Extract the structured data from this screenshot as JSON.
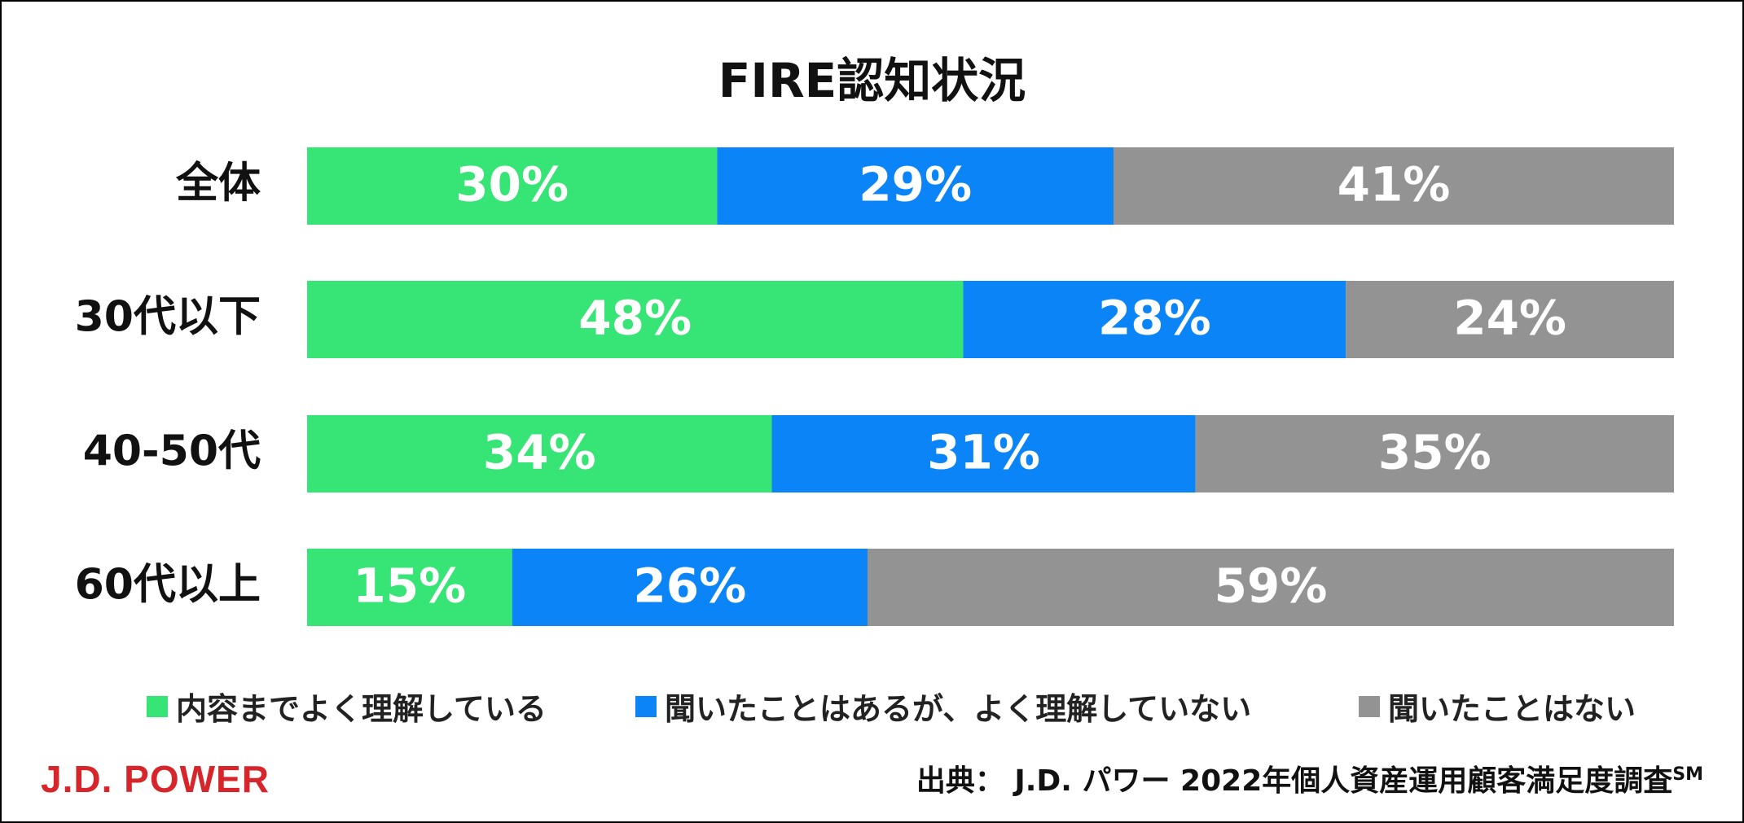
{
  "chart_data": {
    "type": "bar",
    "orientation": "horizontal",
    "stacked": true,
    "title": "FIRE認知状況",
    "categories": [
      "全体",
      "30代以下",
      "40-50代",
      "60代以上"
    ],
    "series": [
      {
        "name": "内容までよく理解している",
        "values": [
          30,
          48,
          34,
          15
        ],
        "color": "#37e476"
      },
      {
        "name": "聞いたことはあるが、よく理解していない",
        "values": [
          29,
          28,
          31,
          26
        ],
        "color": "#0a84f7"
      },
      {
        "name": "聞いたことはない",
        "values": [
          41,
          24,
          35,
          59
        ],
        "color": "#939393"
      }
    ],
    "xlim": [
      0,
      100
    ],
    "value_suffix": "%",
    "grid": false,
    "legend_position": "bottom"
  },
  "branding": {
    "logo_text": "J.D. POWER"
  },
  "source": {
    "text": "出典： J.D. パワー 2022年個人資産運用顧客満足度調査",
    "mark": "SM"
  }
}
